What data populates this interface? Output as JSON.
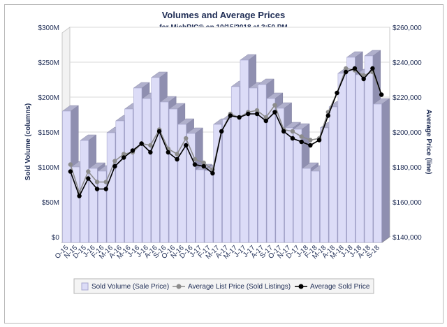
{
  "chart_data": {
    "type": "bar",
    "title": "Volumes and Average Prices",
    "subtitle": "for MichRIC® on 10/15/2018 at 3:50 PM",
    "ylabel_left": "Sold Volume (columns)",
    "ylabel_right": "Average Price (line)",
    "y_left_ticks": [
      "$0",
      "$50M",
      "$100M",
      "$150M",
      "$200M",
      "$250M",
      "$300M"
    ],
    "y_left_range": [
      0,
      300
    ],
    "y_right_ticks": [
      "$140,000",
      "$160,000",
      "$180,000",
      "$200,000",
      "$220,000",
      "$240,000",
      "$260,000"
    ],
    "y_right_range": [
      140000,
      260000
    ],
    "categories": [
      "O-15",
      "N-15",
      "D-15",
      "J-16",
      "F-16",
      "M-16",
      "A-16",
      "M-16",
      "J-16",
      "J-16",
      "A-16",
      "S-16",
      "O-16",
      "N-16",
      "D-16",
      "J-17",
      "F-17",
      "M-17",
      "A-17",
      "M-17",
      "J-17",
      "J-17",
      "A-17",
      "S-17",
      "O-17",
      "N-17",
      "D-17",
      "J-18",
      "F-18",
      "M-18",
      "A-18",
      "M-18",
      "J-18",
      "J-18",
      "A-18",
      "S-18"
    ],
    "grid": true,
    "legend_position": "bottom",
    "series": [
      {
        "name": "Sold Volume (Sale Price)",
        "type": "bar",
        "axis": "left",
        "color": "#dcdcf7",
        "values": [
          188,
          108,
          146,
          106,
          102,
          157,
          174,
          191,
          221,
          206,
          236,
          201,
          191,
          169,
          156,
          104,
          103,
          169,
          176,
          223,
          261,
          221,
          226,
          206,
          192,
          164,
          162,
          106,
          102,
          164,
          194,
          242,
          265,
          240,
          267,
          198
        ]
      },
      {
        "name": "Average List Price (Sold Listings)",
        "type": "line",
        "axis": "right",
        "color": "#8c8c8c",
        "values": [
          183,
          167,
          179,
          173,
          173,
          185,
          189,
          190,
          195,
          194,
          203,
          192,
          189,
          198,
          186,
          184,
          180,
          202,
          212,
          210,
          213,
          214,
          210,
          217,
          203,
          202,
          199,
          197,
          198,
          213,
          224,
          238,
          237,
          234,
          236,
          223
        ]
      },
      {
        "name": "Average Sold Price",
        "type": "line",
        "axis": "right",
        "color": "#000000",
        "values": [
          179,
          165,
          175,
          169,
          169,
          182,
          187,
          191,
          195,
          190,
          202,
          190,
          186,
          194,
          183,
          182,
          178,
          202,
          211,
          210,
          212,
          212,
          208,
          213,
          202,
          198,
          196,
          194,
          197,
          211,
          224,
          236,
          238,
          232,
          238,
          223
        ]
      }
    ]
  }
}
